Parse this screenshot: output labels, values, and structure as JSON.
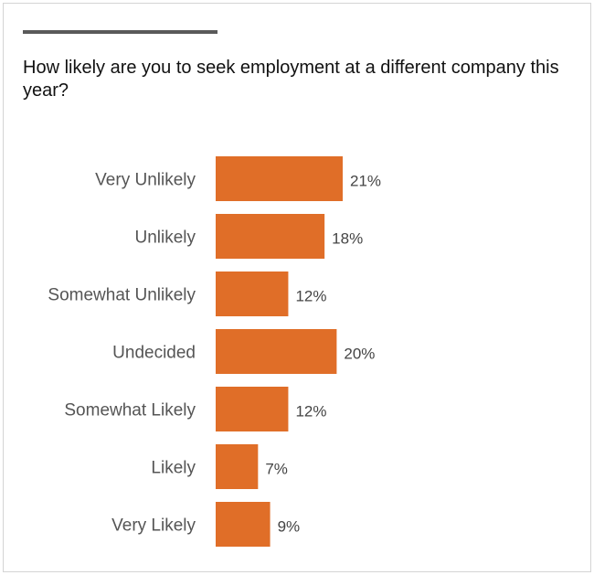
{
  "chart_data": {
    "type": "bar",
    "orientation": "horizontal",
    "title": "How likely are you to seek employment at a different company this year?",
    "categories": [
      "Very Unlikely",
      "Unlikely",
      "Somewhat Unlikely",
      "Undecided",
      "Somewhat Likely",
      "Likely",
      "Very Likely"
    ],
    "values": [
      21,
      18,
      12,
      20,
      12,
      7,
      9
    ],
    "value_labels": [
      "21%",
      "18%",
      "12%",
      "20%",
      "12%",
      "7%",
      "9%"
    ],
    "unit": "%",
    "bar_color": "#E06E28",
    "grid": false,
    "legend": "none"
  }
}
